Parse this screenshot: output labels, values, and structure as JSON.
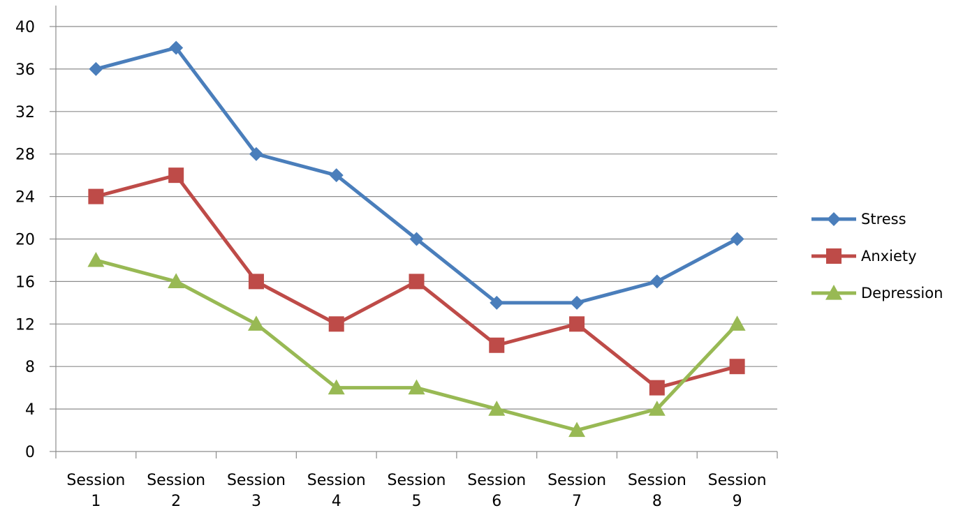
{
  "chart_data": {
    "type": "line",
    "title": "",
    "xlabel": "",
    "ylabel": "",
    "categories": [
      [
        "Session",
        "1"
      ],
      [
        "Session",
        "2"
      ],
      [
        "Session",
        "3"
      ],
      [
        "Session",
        "4"
      ],
      [
        "Session",
        "5"
      ],
      [
        "Session",
        "6"
      ],
      [
        "Session",
        "7"
      ],
      [
        "Session",
        "8"
      ],
      [
        "Session",
        "9"
      ]
    ],
    "ylim": [
      0,
      40
    ],
    "yticks": [
      0,
      4,
      8,
      12,
      16,
      20,
      24,
      28,
      32,
      36,
      40
    ],
    "grid": true,
    "legend_position": "right",
    "series": [
      {
        "name": "Stress",
        "values": [
          36,
          38,
          28,
          26,
          20,
          14,
          14,
          16,
          20
        ],
        "color": "#4A7EBB",
        "marker": "diamond"
      },
      {
        "name": "Anxiety",
        "values": [
          24,
          26,
          16,
          12,
          16,
          10,
          12,
          6,
          8
        ],
        "color": "#BE4B48",
        "marker": "square"
      },
      {
        "name": "Depression",
        "values": [
          18,
          16,
          12,
          6,
          6,
          4,
          2,
          4,
          12
        ],
        "color": "#98B954",
        "marker": "triangle"
      }
    ]
  }
}
